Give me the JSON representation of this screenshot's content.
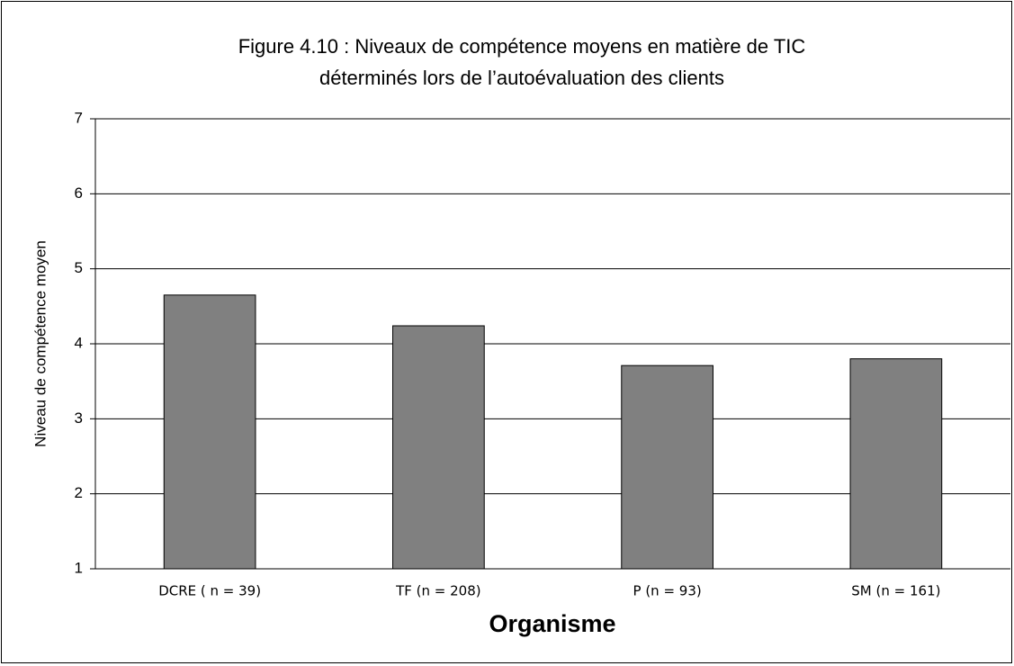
{
  "chart_data": {
    "type": "bar",
    "title": [
      "Figure 4.10 : Niveaux de compétence moyens en matière de TIC",
      "déterminés lors de l’autoévaluation des clients"
    ],
    "x_label": "Organisme",
    "y_label": "Niveau de compétence moyen",
    "categories": [
      "DCRE ( n = 39)",
      "TF (n = 208)",
      "P (n = 93)",
      "SM (n = 161)"
    ],
    "values": [
      4.65,
      4.24,
      3.71,
      3.8
    ],
    "color": "#808080",
    "ylim": [
      1,
      7
    ],
    "yticks": [
      1,
      2,
      3,
      4,
      5,
      6,
      7
    ],
    "grid": true
  }
}
